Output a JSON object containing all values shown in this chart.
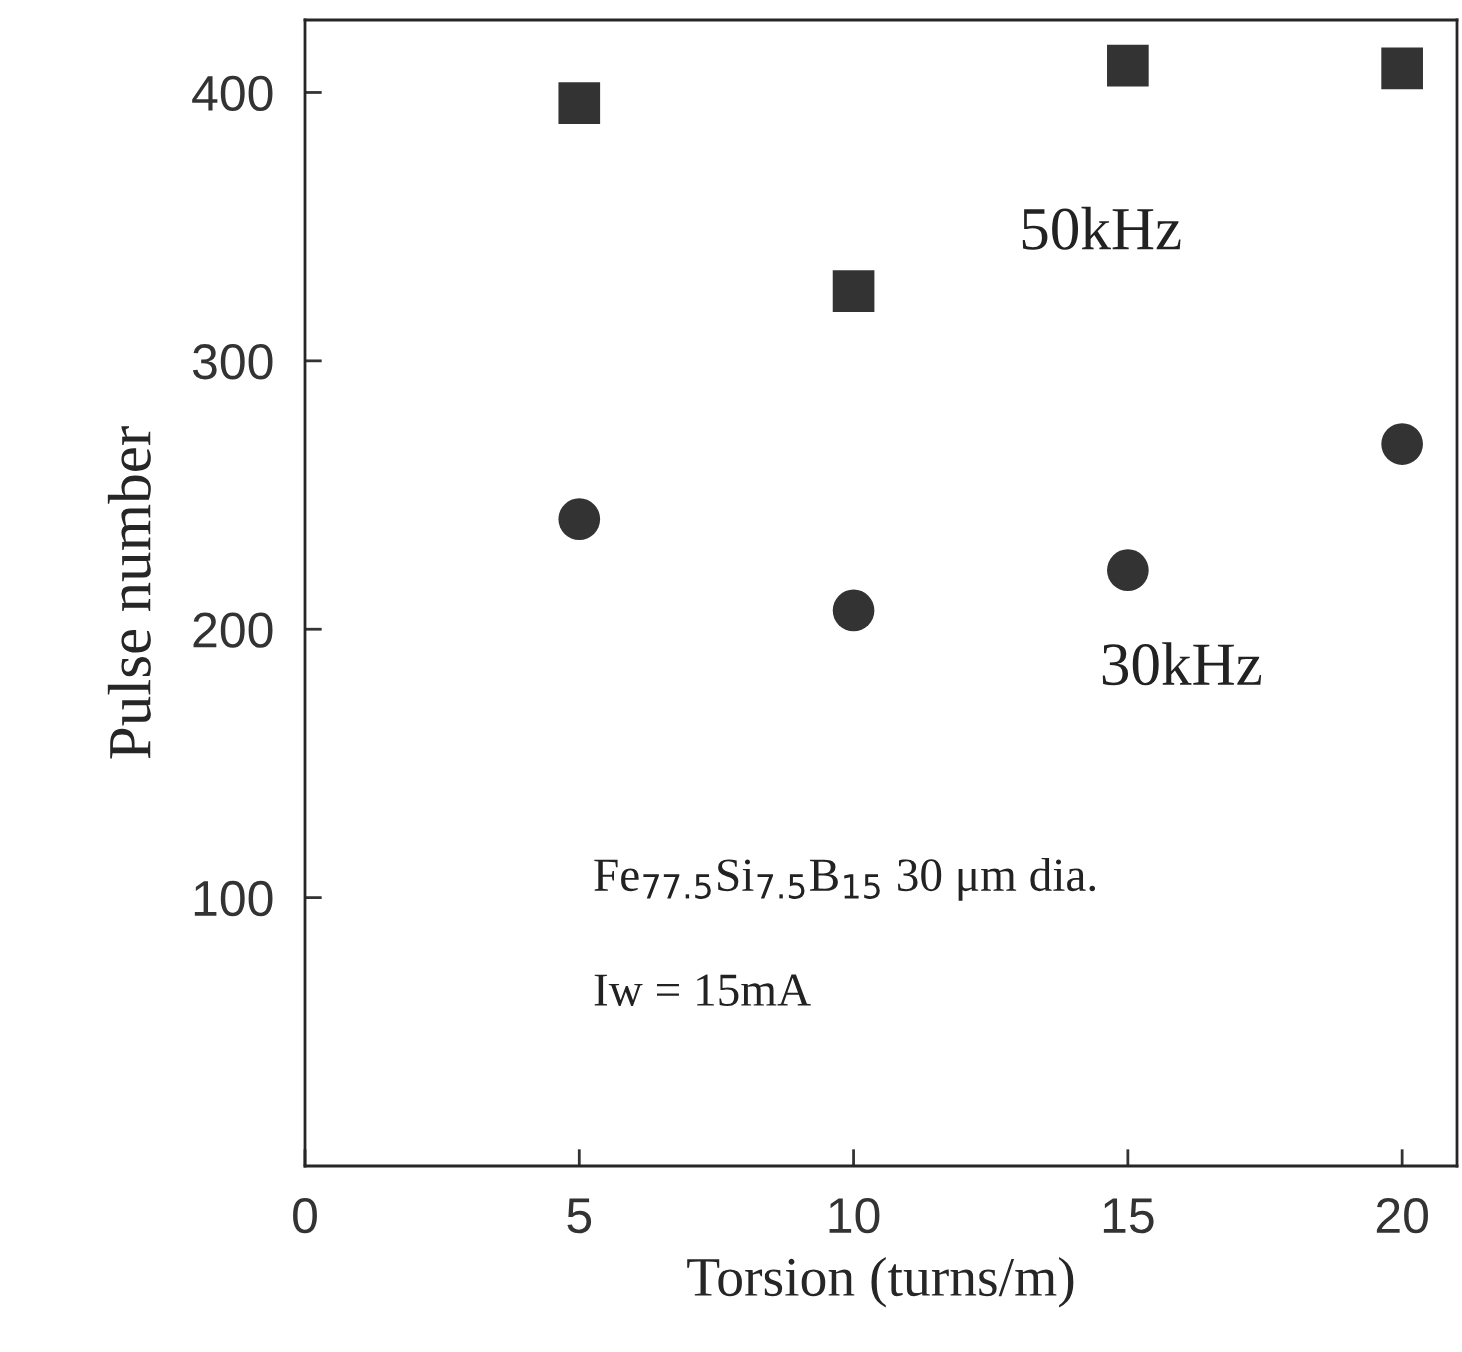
{
  "chart_data": {
    "type": "scatter",
    "xlabel": "Torsion (turns/m)",
    "ylabel": "Pulse number",
    "xlim": [
      0,
      21
    ],
    "ylim": [
      0,
      427
    ],
    "xticks": [
      0,
      5,
      10,
      15,
      20
    ],
    "yticks": [
      100,
      200,
      300,
      400
    ],
    "grid": false,
    "legend": false,
    "series": [
      {
        "name": "50kHz",
        "color": "#333333",
        "marker": "square",
        "x": [
          5,
          10,
          15,
          20
        ],
        "values": [
          396,
          326,
          410,
          409
        ]
      },
      {
        "name": "30kHz",
        "color": "#333333",
        "marker": "circle",
        "x": [
          5,
          10,
          15,
          20
        ],
        "values": [
          241,
          207,
          222,
          269
        ]
      }
    ],
    "annotations": [
      "Fe$_{77.5}$Si$_{7.5}$B$_{15}$ 30 μm dia.",
      "Iw = 15mA"
    ]
  }
}
